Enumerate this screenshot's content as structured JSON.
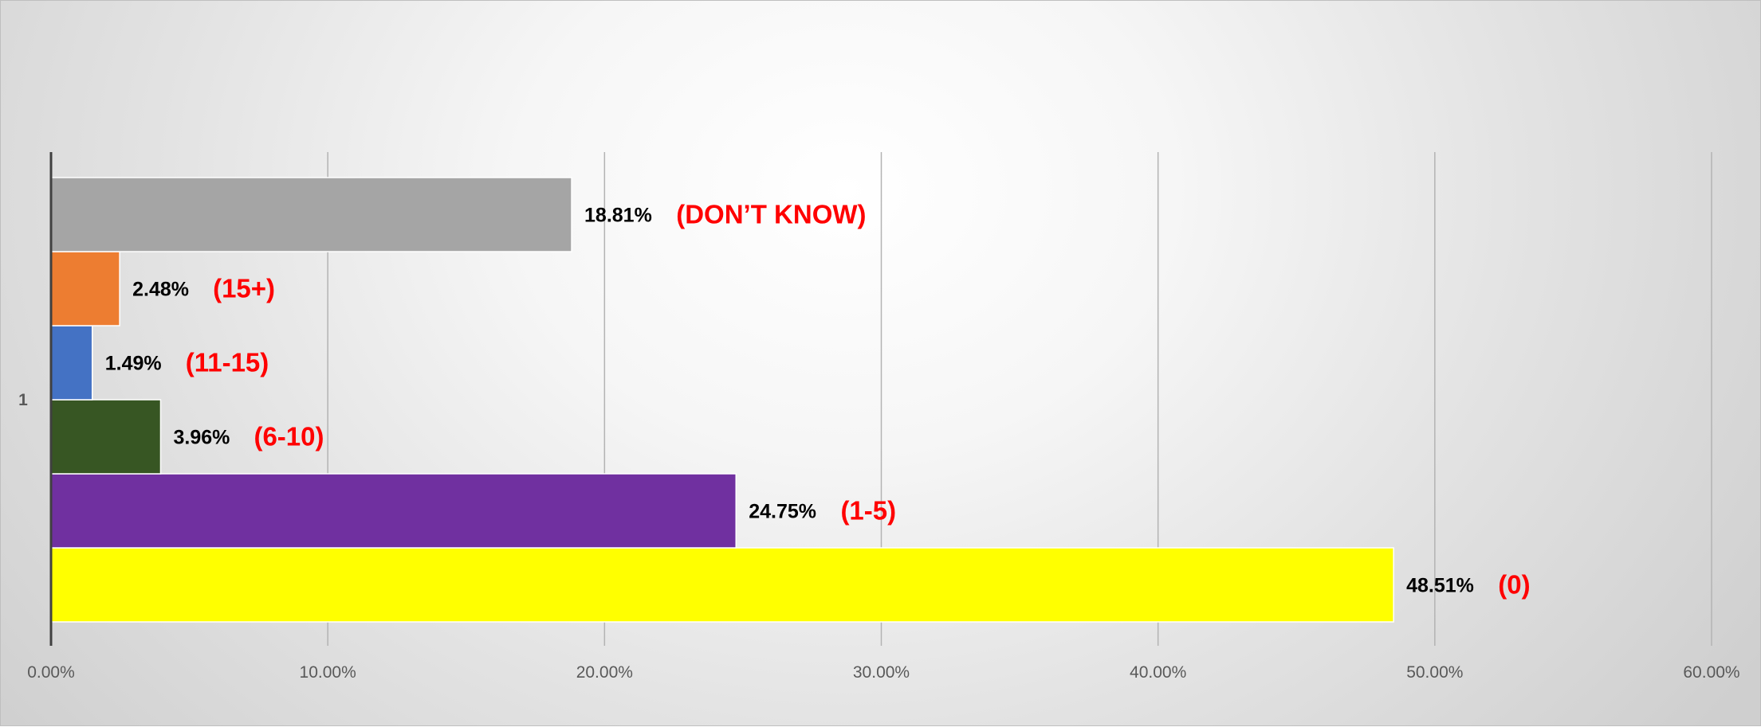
{
  "chart_data": {
    "type": "bar",
    "orientation": "horizontal",
    "categories": [
      "1"
    ],
    "series": [
      {
        "value_label": "48.51%",
        "range_label": "(0)",
        "value": 48.51,
        "color": "#ffff00"
      },
      {
        "value_label": "24.75%",
        "range_label": "(1-5)",
        "value": 24.75,
        "color": "#7030a0"
      },
      {
        "value_label": "3.96%",
        "range_label": "(6-10)",
        "value": 3.96,
        "color": "#375623"
      },
      {
        "value_label": "1.49%",
        "range_label": "(11-15)",
        "value": 1.49,
        "color": "#4472c4"
      },
      {
        "value_label": "2.48%",
        "range_label": "(15+)",
        "value": 2.48,
        "color": "#ed7d31"
      },
      {
        "value_label": "18.81%",
        "range_label": "(DON’T KNOW)",
        "value": 18.81,
        "color": "#a5a5a5"
      }
    ],
    "x_ticks": [
      "0.00%",
      "10.00%",
      "20.00%",
      "30.00%",
      "40.00%",
      "50.00%",
      "60.00%"
    ],
    "xlim": [
      0,
      60
    ],
    "grid": true,
    "legend": "none",
    "title": "",
    "xlabel": "",
    "ylabel": ""
  }
}
